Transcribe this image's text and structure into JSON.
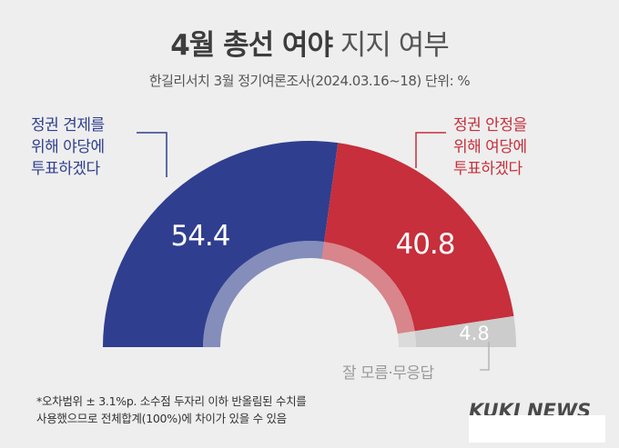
{
  "header": {
    "title_bold": "4월 총선 여야",
    "title_light": "지지 여부",
    "subtitle": "한길리서치 3월 정기여론조사(2024.03.16~18) 단위: %"
  },
  "chart_data": {
    "type": "pie",
    "style": "semi-donut",
    "title": "4월 총선 여야 지지 여부",
    "unit": "%",
    "series": [
      {
        "name": "정권 견제를 위해 야당에 투표하겠다",
        "value": 54.4,
        "label": "54.4",
        "color": "#2f3e8f"
      },
      {
        "name": "정권 안정을 위해 여당에 투표하겠다",
        "value": 40.8,
        "label": "40.8",
        "color": "#c62f3b"
      },
      {
        "name": "잘 모름·무응답",
        "value": 4.8,
        "label": "4.8",
        "color": "#cccccc"
      }
    ]
  },
  "labels": {
    "left": [
      "정권 견제를",
      "위해 야당에",
      "투표하겠다"
    ],
    "right": [
      "정권 안정을",
      "위해 여당에",
      "투표하겠다"
    ],
    "gray": "잘 모름·무응답"
  },
  "footnote": [
    "*오차범위 ± 3.1%p. 소수점 두자리 이하 반올림된 수치를",
    "사용했으므로 전체합계(100%)에 차이가 있을 수 있음"
  ],
  "logo": "KUKI NEWS"
}
